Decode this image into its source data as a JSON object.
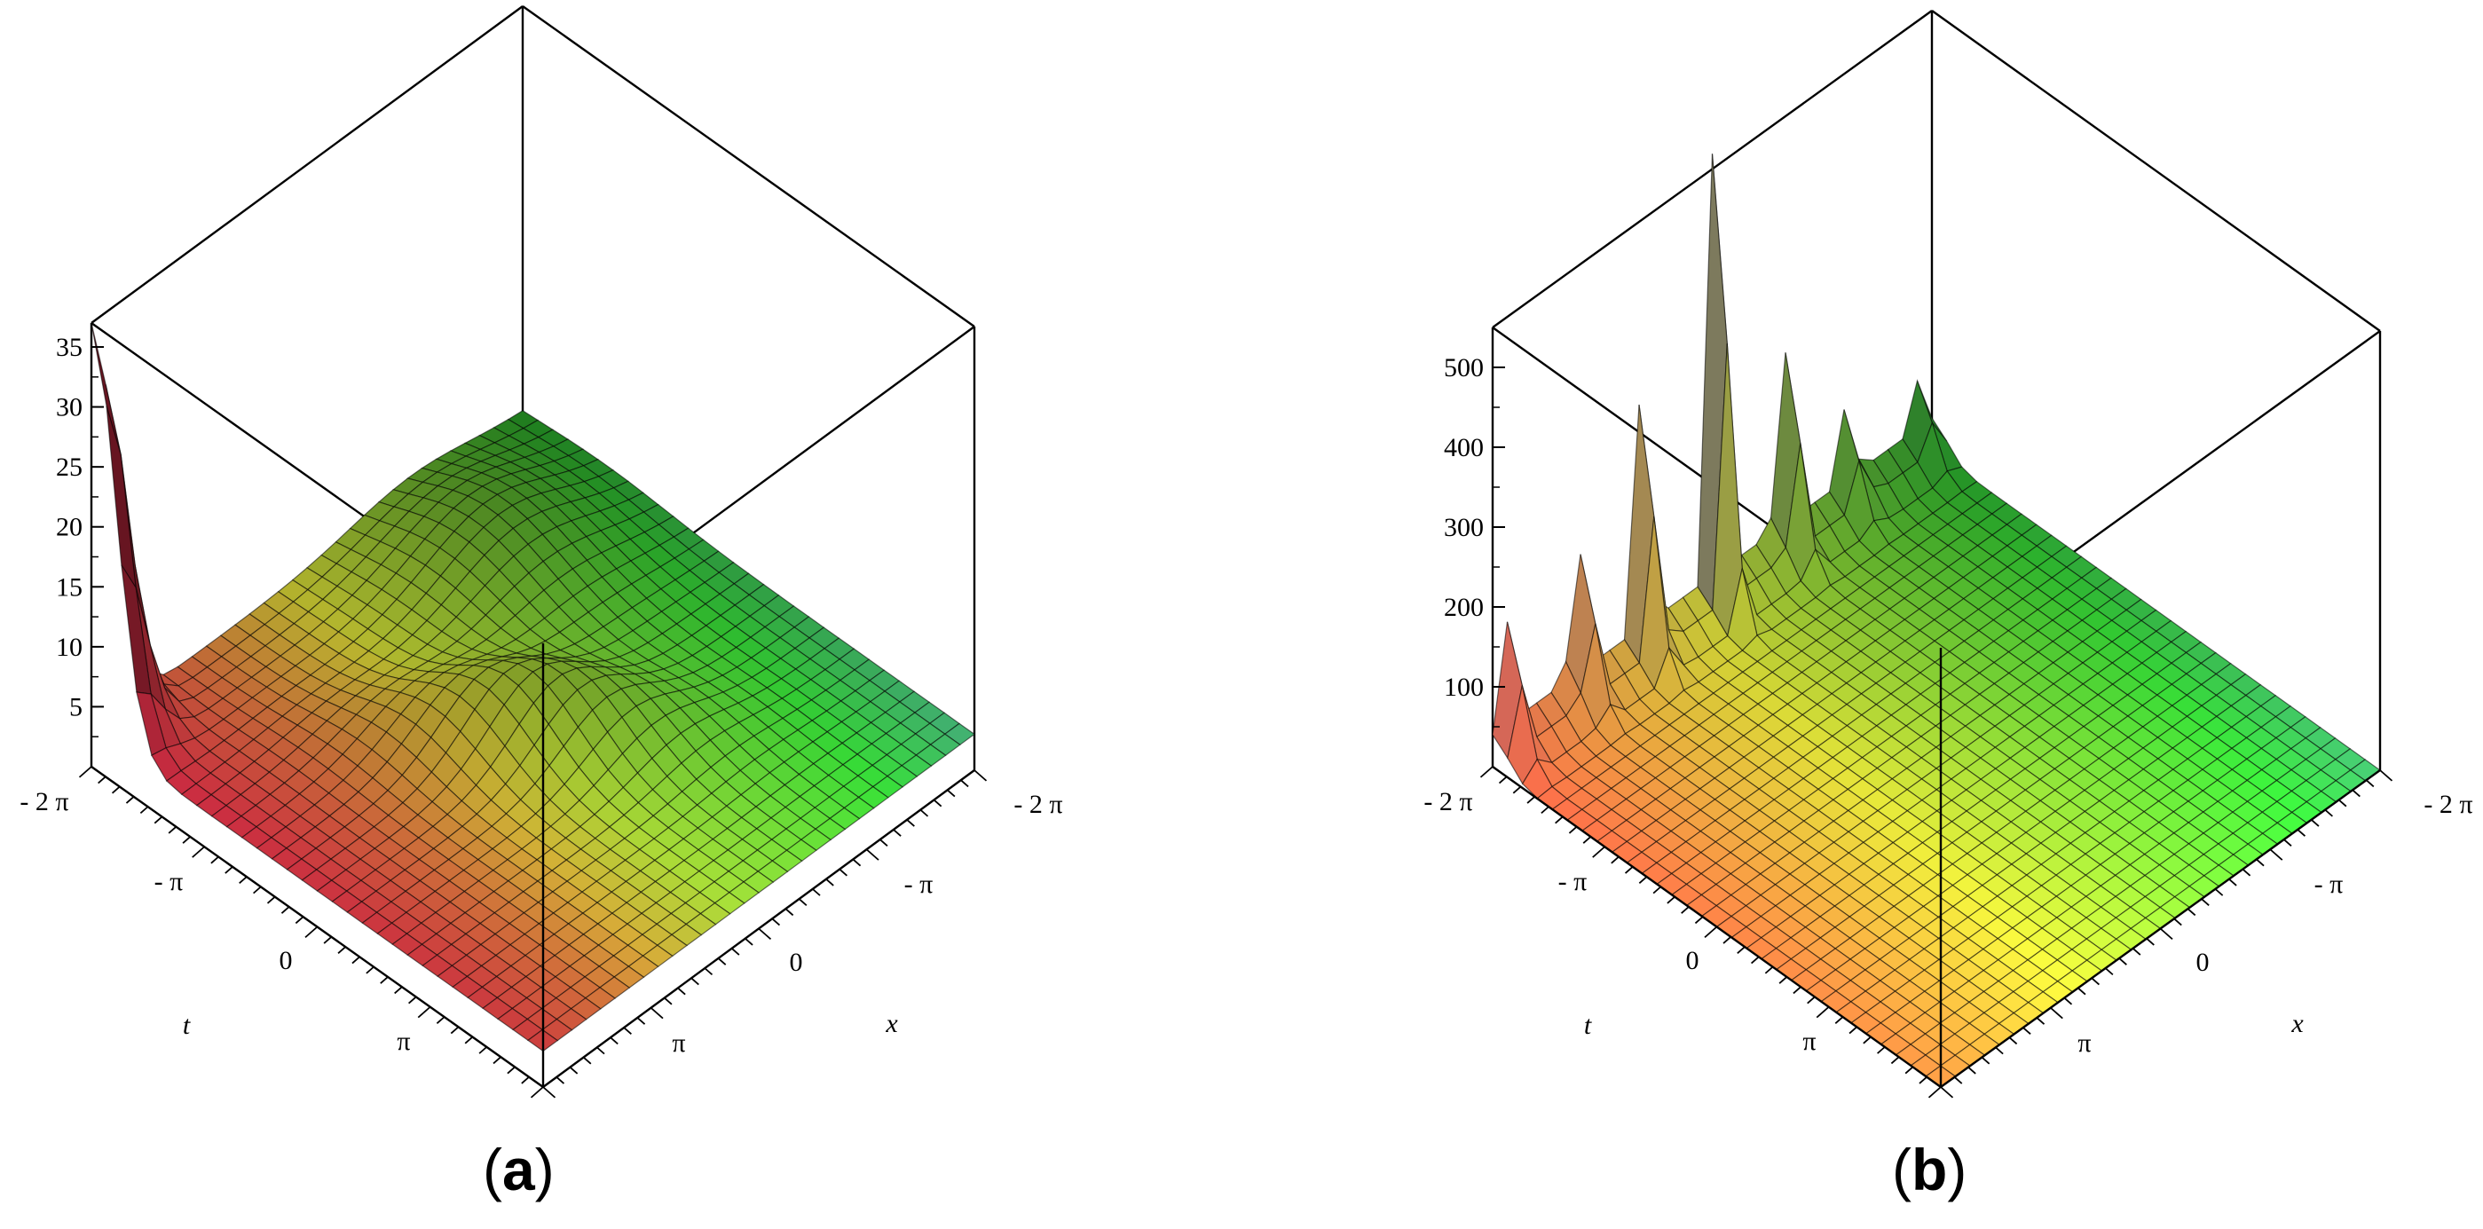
{
  "chart_data": [
    {
      "type": "surface",
      "panel_label": "a",
      "xlabel": "x",
      "tlabel": "t",
      "x_range": [
        -6.283,
        6.283
      ],
      "t_range": [
        -6.283,
        6.283
      ],
      "z_range": [
        0,
        37
      ],
      "z_ticks": [
        "5",
        "10",
        "15",
        "20",
        "25",
        "30",
        "35"
      ],
      "t_ticks": [
        "- 2 π",
        "- π",
        "0",
        "π"
      ],
      "x_ticks": [
        "- 2 π",
        "- π",
        "0",
        "π"
      ],
      "peak_value": 37,
      "baseline_value": 3,
      "colormap": [
        "#ff4d4d",
        "#ffff40",
        "#40ff40",
        "#6060ff"
      ]
    },
    {
      "type": "surface",
      "panel_label": "b",
      "xlabel": "x",
      "tlabel": "t",
      "x_range": [
        -6.283,
        6.283
      ],
      "t_range": [
        -6.283,
        6.283
      ],
      "z_range": [
        0,
        550
      ],
      "z_ticks": [
        "100",
        "200",
        "300",
        "400",
        "500"
      ],
      "t_ticks": [
        "- 2 π",
        "- π",
        "0",
        "π"
      ],
      "x_ticks": [
        "- 2 π",
        "- π",
        "0",
        "π"
      ],
      "peak_value": 540,
      "baseline_value": 0,
      "colormap": [
        "#ff4d4d",
        "#ffff40",
        "#40ff40",
        "#6060ff"
      ]
    }
  ],
  "captions": {
    "a": "a",
    "b": "b"
  }
}
